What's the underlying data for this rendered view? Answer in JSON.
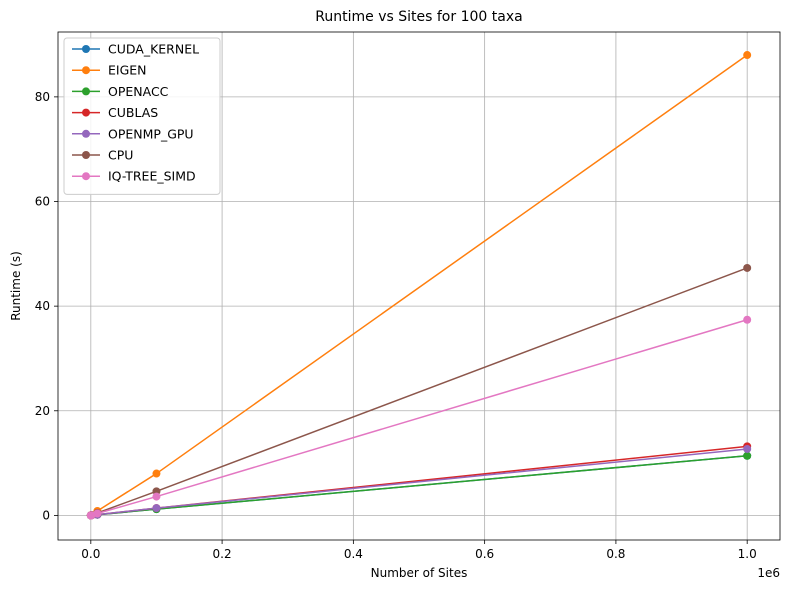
{
  "chart_data": {
    "type": "line",
    "title": "Runtime vs Sites for 100 taxa",
    "xlabel": "Number of Sites",
    "ylabel": "Runtime (s)",
    "x_offset_label": "1e6",
    "x": [
      10,
      100,
      1000,
      10000,
      100000,
      1000000
    ],
    "xlim": [
      -50000,
      1050000
    ],
    "ylim": [
      -4.7,
      92.4
    ],
    "x_ticks": [
      0,
      200000,
      400000,
      600000,
      800000,
      1000000
    ],
    "x_tick_labels": [
      "0.0",
      "0.2",
      "0.4",
      "0.6",
      "0.8",
      "1.0"
    ],
    "y_ticks": [
      0,
      20,
      40,
      60,
      80
    ],
    "y_tick_labels": [
      "0",
      "20",
      "40",
      "60",
      "80"
    ],
    "grid": true,
    "legend_position": "top-left",
    "series": [
      {
        "name": "CUDA_KERNEL",
        "color": "#1f77b4",
        "values": [
          0.0,
          0.0,
          0.02,
          0.13,
          1.2,
          11.4
        ]
      },
      {
        "name": "EIGEN",
        "color": "#ff7f0e",
        "values": [
          0.0,
          0.01,
          0.08,
          0.85,
          8.0,
          88.0
        ]
      },
      {
        "name": "OPENACC",
        "color": "#2ca02c",
        "values": [
          0.0,
          0.0,
          0.02,
          0.13,
          1.2,
          11.4
        ]
      },
      {
        "name": "CUBLAS",
        "color": "#d62728",
        "values": [
          0.0,
          0.0,
          0.02,
          0.15,
          1.4,
          13.2
        ]
      },
      {
        "name": "OPENMP_GPU",
        "color": "#9467bd",
        "values": [
          0.0,
          0.0,
          0.02,
          0.14,
          1.4,
          12.7
        ]
      },
      {
        "name": "CPU",
        "color": "#8c564b",
        "values": [
          0.0,
          0.01,
          0.05,
          0.47,
          4.6,
          47.3
        ]
      },
      {
        "name": "IQ-TREE_SIMD",
        "color": "#e377c2",
        "values": [
          0.0,
          0.0,
          0.04,
          0.37,
          3.6,
          37.4
        ]
      }
    ]
  }
}
